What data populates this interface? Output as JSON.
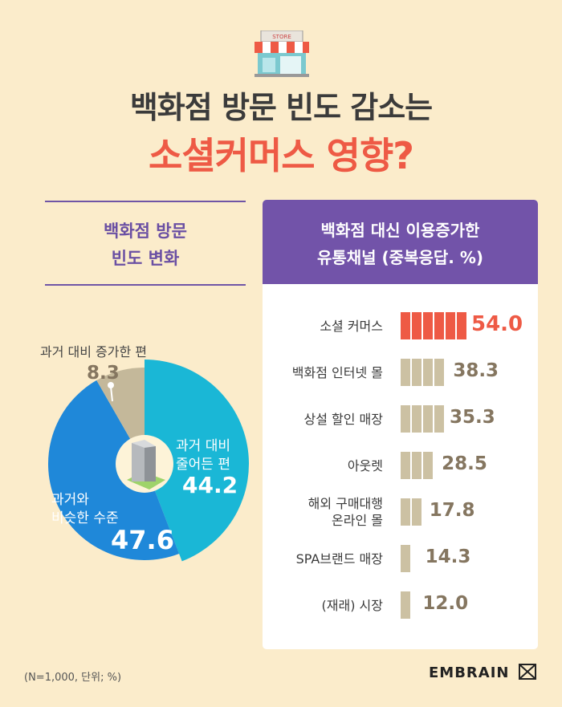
{
  "title_line1": "백화점 방문 빈도 감소는",
  "title_line2": "소셜커머스 영향?",
  "store_sign": "STORE",
  "left_panel": {
    "title_line1": "백화점 방문",
    "title_line2": "빈도 변화"
  },
  "right_panel": {
    "title_line1": "백화점 대신 이용증가한",
    "title_line2": "유통채널 (중복응답. %)"
  },
  "note": "(N=1,000, 단위; %)",
  "brand": "EMBRAIN",
  "colors": {
    "accent_red": "#ee5a45",
    "purple": "#7253a9",
    "cyan": "#1ab7d6",
    "blue": "#1f88d9",
    "beige": "#c4b89a",
    "bar": "#ccc1a3"
  },
  "chart_data": [
    {
      "type": "pie",
      "title": "백화점 방문 빈도 변화",
      "slices": [
        {
          "label": "과거 대비 줄어든 편",
          "label_line1": "과거 대비",
          "label_line2": "줄어든 편",
          "value": 44.2,
          "value_text": "44.2",
          "color": "#1ab7d6"
        },
        {
          "label": "과거와 비슷한 수준",
          "label_line1": "과거와",
          "label_line2": "비슷한 수준",
          "value": 47.6,
          "value_text": "47.6",
          "color": "#1f88d9"
        },
        {
          "label": "과거 대비 증가한 편",
          "value": 8.3,
          "value_text": "8.3",
          "color": "#c4b89a"
        }
      ]
    },
    {
      "type": "bar",
      "title": "백화점 대신 이용증가한 유통채널 (중복응답. %)",
      "categories": [
        "소셜 커머스",
        "백화점 인터넷 몰",
        "상설 할인 매장",
        "아웃렛",
        "해외 구매대행 온라인 몰",
        "SPA브랜드 매장",
        "(재래) 시장"
      ],
      "category_lines": [
        [
          "소셜 커머스"
        ],
        [
          "백화점 인터넷 몰"
        ],
        [
          "상설 할인 매장"
        ],
        [
          "아웃렛"
        ],
        [
          "해외 구매대행",
          "온라인 몰"
        ],
        [
          "SPA브랜드 매장"
        ],
        [
          "(재래) 시장"
        ]
      ],
      "values": [
        54.0,
        38.3,
        35.3,
        28.5,
        17.8,
        14.3,
        12.0
      ],
      "value_texts": [
        "54.0",
        "38.3",
        "35.3",
        "28.5",
        "17.8",
        "14.3",
        "12.0"
      ],
      "highlight_index": 0
    }
  ]
}
